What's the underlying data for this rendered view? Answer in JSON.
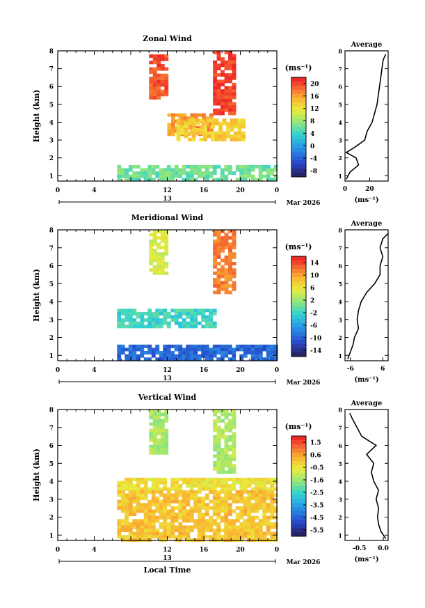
{
  "figure": {
    "xlabel": "Local Time",
    "date_label": "Mar 2026",
    "day_label": "13",
    "height_label": "Height (km)",
    "unit_label": "(ms⁻¹)",
    "average_title": "Average"
  },
  "chart_data": [
    {
      "type": "heatmap",
      "title": "Zonal Wind",
      "xlabel": "",
      "ylabel": "Height (km)",
      "xlim": [
        0,
        24
      ],
      "ylim": [
        0.7,
        8
      ],
      "xticks": [
        "0",
        "4",
        "12",
        "16",
        "20",
        "0"
      ],
      "xtick_values": [
        0,
        4,
        12,
        16,
        20,
        24
      ],
      "yticks": [
        "1",
        "2",
        "3",
        "4",
        "5",
        "6",
        "7",
        "8"
      ],
      "colorbar": {
        "label": "(ms⁻¹)",
        "ticks": [
          "20",
          "16",
          "12",
          "8",
          "4",
          "0",
          "-4",
          "-8"
        ],
        "range": [
          -10,
          22
        ]
      },
      "regions": [
        {
          "x": [
            10,
            12
          ],
          "y": [
            5.3,
            7.8
          ],
          "value": 20
        },
        {
          "x": [
            17,
            19.5
          ],
          "y": [
            4.5,
            8
          ],
          "value": 21
        },
        {
          "x": [
            12,
            17
          ],
          "y": [
            3.3,
            4.5
          ],
          "value": 17
        },
        {
          "x": [
            13,
            20.5
          ],
          "y": [
            3.0,
            4.2
          ],
          "value": 14
        },
        {
          "x": [
            6.5,
            24
          ],
          "y": [
            0.8,
            1.6
          ],
          "value": 6
        }
      ],
      "profile": {
        "title": "Average",
        "xlabel": "(ms⁻¹)",
        "xticks": [
          "0",
          "20"
        ],
        "xlim": [
          0,
          35
        ],
        "heights": [
          0.8,
          1.2,
          1.6,
          2.0,
          2.3,
          2.6,
          3.0,
          3.5,
          4.0,
          4.5,
          5.0,
          5.5,
          6.0,
          6.5,
          7.0,
          7.5,
          7.8
        ],
        "values": [
          1,
          4,
          11,
          9,
          1,
          8,
          16,
          18,
          22,
          24,
          26,
          27,
          28,
          29,
          30,
          31,
          33
        ]
      }
    },
    {
      "type": "heatmap",
      "title": "Meridional Wind",
      "xlabel": "",
      "ylabel": "Height (km)",
      "xlim": [
        0,
        24
      ],
      "ylim": [
        0.7,
        8
      ],
      "xticks": [
        "0",
        "4",
        "12",
        "16",
        "20",
        "0"
      ],
      "xtick_values": [
        0,
        4,
        12,
        16,
        20,
        24
      ],
      "yticks": [
        "1",
        "2",
        "3",
        "4",
        "5",
        "6",
        "7",
        "8"
      ],
      "colorbar": {
        "label": "(ms⁻¹)",
        "ticks": [
          "14",
          "10",
          "6",
          "2",
          "-2",
          "-6",
          "-10",
          "-14"
        ],
        "range": [
          -16,
          16
        ]
      },
      "regions": [
        {
          "x": [
            10,
            12
          ],
          "y": [
            5.5,
            8
          ],
          "value": 5
        },
        {
          "x": [
            17,
            19.5
          ],
          "y": [
            4.5,
            8
          ],
          "value": 12
        },
        {
          "x": [
            6.5,
            17
          ],
          "y": [
            2.7,
            3.6
          ],
          "value": -2
        },
        {
          "x": [
            6.5,
            24
          ],
          "y": [
            0.8,
            1.6
          ],
          "value": -10
        }
      ],
      "profile": {
        "title": "Average",
        "xlabel": "(ms⁻¹)",
        "xticks": [
          "-6",
          "6"
        ],
        "xlim": [
          -8,
          8
        ],
        "heights": [
          0.8,
          1.2,
          1.6,
          2.0,
          2.5,
          3.0,
          3.5,
          4.0,
          4.5,
          5.0,
          5.5,
          6.0,
          6.5,
          7.0,
          7.5,
          7.8
        ],
        "values": [
          -7,
          -6,
          -5,
          -4.5,
          -3,
          -3.5,
          -3,
          -2,
          0,
          3,
          5,
          5,
          6,
          5,
          6,
          8
        ]
      }
    },
    {
      "type": "heatmap",
      "title": "Vertical Wind",
      "xlabel": "Local Time",
      "ylabel": "Height (km)",
      "xlim": [
        0,
        24
      ],
      "ylim": [
        0.7,
        8
      ],
      "xticks": [
        "0",
        "4",
        "12",
        "16",
        "20",
        "0"
      ],
      "xtick_values": [
        0,
        4,
        12,
        16,
        20,
        24
      ],
      "yticks": [
        "1",
        "2",
        "3",
        "4",
        "5",
        "6",
        "7",
        "8"
      ],
      "colorbar": {
        "label": "(ms⁻¹)",
        "ticks": [
          "1.5",
          "0.6",
          "-0.5",
          "-1.6",
          "-2.5",
          "-3.5",
          "-4.5",
          "-5.5"
        ],
        "range": [
          -6,
          2
        ]
      },
      "regions": [
        {
          "x": [
            10,
            12
          ],
          "y": [
            5.5,
            8
          ],
          "value": -1.3
        },
        {
          "x": [
            17,
            19.5
          ],
          "y": [
            4.5,
            8
          ],
          "value": -1.3
        },
        {
          "x": [
            6.5,
            24
          ],
          "y": [
            3.5,
            4.2
          ],
          "value": -0.4
        },
        {
          "x": [
            6.5,
            24
          ],
          "y": [
            0.8,
            3.5
          ],
          "value": 0.1
        }
      ],
      "profile": {
        "title": "Average",
        "xlabel": "(ms⁻¹)",
        "xticks": [
          "-0.5",
          "0.0"
        ],
        "xlim": [
          -0.8,
          0.1
        ],
        "heights": [
          0.8,
          1.2,
          1.6,
          2.0,
          2.5,
          3.0,
          3.5,
          4.0,
          4.5,
          5.0,
          5.5,
          6.0,
          6.5,
          7.0,
          7.5,
          7.8
        ],
        "values": [
          0.05,
          -0.05,
          -0.1,
          -0.12,
          -0.1,
          -0.15,
          -0.1,
          -0.2,
          -0.25,
          -0.2,
          -0.35,
          -0.15,
          -0.45,
          -0.55,
          -0.65,
          -0.7
        ]
      }
    }
  ]
}
